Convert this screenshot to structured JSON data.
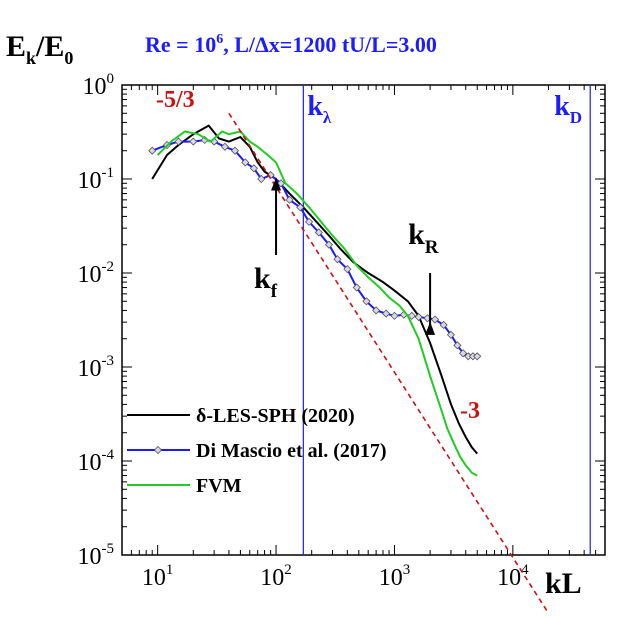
{
  "chart_data": {
    "type": "line",
    "title": "Re = 10^6,  L/Δx=1200  tU/L=3.00",
    "title_parts": {
      "re_base": "Re = 10",
      "re_exp": "6",
      "rest": ",  L/Δx=1200  tU/L=3.00"
    },
    "xlabel": "kL",
    "ylabel": {
      "main": "E",
      "sub1": "k",
      "mid": "/E",
      "sub2": "0"
    },
    "xscale": "log",
    "yscale": "log",
    "xlim": [
      5,
      60000
    ],
    "ylim": [
      1e-05,
      1
    ],
    "grid": false,
    "legend_position": "bottom-left",
    "x_tick_labels": [
      {
        "value": 10,
        "base": "10",
        "exp": "1"
      },
      {
        "value": 100,
        "base": "10",
        "exp": "2"
      },
      {
        "value": 1000,
        "base": "10",
        "exp": "3"
      },
      {
        "value": 10000,
        "base": "10",
        "exp": "4"
      }
    ],
    "y_tick_labels": [
      {
        "value": 1,
        "base": "10",
        "exp": "0"
      },
      {
        "value": 0.1,
        "base": "10",
        "exp": "-1"
      },
      {
        "value": 0.01,
        "base": "10",
        "exp": "-2"
      },
      {
        "value": 0.001,
        "base": "10",
        "exp": "-3"
      },
      {
        "value": 0.0001,
        "base": "10",
        "exp": "-4"
      },
      {
        "value": 1e-05,
        "base": "10",
        "exp": "-5"
      }
    ],
    "series": [
      {
        "name": "δ-LES-SPH (2020)",
        "color": "#000000",
        "x": [
          9,
          12,
          15,
          20,
          27,
          33,
          40,
          50,
          60,
          70,
          80,
          100,
          130,
          170,
          220,
          280,
          350,
          450,
          600,
          800,
          1000,
          1300,
          1600,
          2000,
          2500,
          3000,
          3500,
          4000,
          4500,
          5000
        ],
        "y": [
          0.1,
          0.18,
          0.23,
          0.3,
          0.37,
          0.27,
          0.25,
          0.28,
          0.22,
          0.15,
          0.12,
          0.1,
          0.07,
          0.05,
          0.035,
          0.025,
          0.018,
          0.013,
          0.01,
          0.008,
          0.0065,
          0.005,
          0.0035,
          0.0018,
          0.0008,
          0.0004,
          0.00025,
          0.00018,
          0.00014,
          0.00012
        ]
      },
      {
        "name": "Di Mascio et al. (2017)",
        "color": "#1c1cff",
        "marker": "diamond",
        "x": [
          9,
          12,
          15,
          20,
          25,
          30,
          37,
          45,
          55,
          65,
          75,
          90,
          110,
          130,
          160,
          190,
          230,
          280,
          330,
          400,
          480,
          580,
          700,
          850,
          1000,
          1200,
          1400,
          1600,
          1900,
          2200,
          2600,
          3000,
          3400,
          3800,
          4200,
          4600,
          5000
        ],
        "y": [
          0.2,
          0.23,
          0.25,
          0.25,
          0.26,
          0.25,
          0.22,
          0.2,
          0.15,
          0.13,
          0.1,
          0.11,
          0.09,
          0.06,
          0.05,
          0.035,
          0.027,
          0.02,
          0.014,
          0.011,
          0.007,
          0.005,
          0.004,
          0.0037,
          0.0035,
          0.0036,
          0.0035,
          0.0034,
          0.0033,
          0.0032,
          0.0028,
          0.0022,
          0.0017,
          0.0014,
          0.0013,
          0.0013,
          0.0013
        ]
      },
      {
        "name": "FVM",
        "color": "#22cc22",
        "x": [
          10,
          13,
          17,
          22,
          28,
          35,
          40,
          50,
          60,
          70,
          85,
          100,
          120,
          150,
          190,
          240,
          300,
          380,
          480,
          600,
          750,
          900,
          1100,
          1300,
          1600,
          2000,
          2400,
          2800,
          3200,
          3600,
          4000,
          4500,
          5000
        ],
        "y": [
          0.18,
          0.25,
          0.32,
          0.3,
          0.25,
          0.32,
          0.3,
          0.32,
          0.25,
          0.22,
          0.18,
          0.15,
          0.09,
          0.07,
          0.05,
          0.035,
          0.025,
          0.018,
          0.012,
          0.009,
          0.007,
          0.0055,
          0.0045,
          0.0035,
          0.002,
          0.0008,
          0.0004,
          0.00022,
          0.00015,
          0.00011,
          9e-05,
          7.5e-05,
          7e-05
        ]
      }
    ],
    "reference_lines": [
      {
        "name": "-5/3",
        "label": "-5/3",
        "color": "#cc1111",
        "style": "dashed",
        "x": [
          40,
          20000
        ],
        "y": [
          0.5,
          2.4e-06
        ]
      }
    ],
    "annotations": {
      "slope_53": {
        "label": "-5/3",
        "color": "#cc1111"
      },
      "slope_3": {
        "label": "-3",
        "color": "#cc1111"
      },
      "k_lambda": {
        "base": "k",
        "sub": "λ",
        "x": 170,
        "color": "#1c1cff"
      },
      "k_D": {
        "base": "k",
        "sub": "D",
        "x": 45000,
        "color": "#1c1cff"
      },
      "k_f": {
        "base": "k",
        "sub": "f",
        "x": 100,
        "arrow_to_y": 0.12,
        "color": "#000000"
      },
      "k_R": {
        "base": "k",
        "sub": "R",
        "x": 2000,
        "arrow_to_y": 0.0035,
        "color": "#000000"
      }
    }
  }
}
